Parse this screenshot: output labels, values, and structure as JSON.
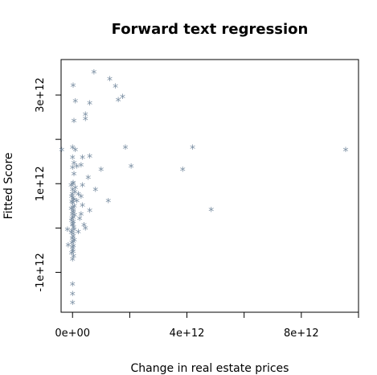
{
  "chart_data": {
    "type": "scatter",
    "title": "Forward text regression",
    "xlabel": "Change in real estate prices",
    "ylabel": "Fitted Score",
    "xlim": [
      -400000000000.0,
      10000000000000.0
    ],
    "ylim": [
      -1900000000000.0,
      3800000000000.0
    ],
    "x_ticks": [
      0,
      2000000000000.0,
      4000000000000.0,
      6000000000000.0,
      8000000000000.0,
      10000000000000.0
    ],
    "x_tick_labels": [
      {
        "value": 0,
        "label": "0e+00"
      },
      {
        "value": 4000000000000.0,
        "label": "4e+12"
      },
      {
        "value": 8000000000000.0,
        "label": "8e+12"
      }
    ],
    "y_ticks": [
      -1000000000000.0,
      0,
      1000000000000.0,
      2000000000000.0,
      3000000000000.0
    ],
    "y_tick_labels": [
      {
        "value": -1000000000000.0,
        "label": "-1e+12"
      },
      {
        "value": 1000000000000.0,
        "label": "1e+12"
      },
      {
        "value": 3000000000000.0,
        "label": "3e+12"
      }
    ],
    "marker": "*",
    "marker_color": "#7b8fa3",
    "grid": false,
    "points": [
      {
        "x": 750000000000.0,
        "y": 3500000000000.0
      },
      {
        "x": 1300000000000.0,
        "y": 3350000000000.0
      },
      {
        "x": 1500000000000.0,
        "y": 3180000000000.0
      },
      {
        "x": 20000000000.0,
        "y": 3200000000000.0
      },
      {
        "x": 1750000000000.0,
        "y": 2950000000000.0
      },
      {
        "x": 1600000000000.0,
        "y": 2870000000000.0
      },
      {
        "x": 100000000000.0,
        "y": 2850000000000.0
      },
      {
        "x": 600000000000.0,
        "y": 2800000000000.0
      },
      {
        "x": 450000000000.0,
        "y": 2550000000000.0
      },
      {
        "x": 450000000000.0,
        "y": 2450000000000.0
      },
      {
        "x": 50000000000.0,
        "y": 2400000000000.0
      },
      {
        "x": -380000000000.0,
        "y": 1750000000000.0
      },
      {
        "x": 0.0,
        "y": 1800000000000.0
      },
      {
        "x": 100000000000.0,
        "y": 1750000000000.0
      },
      {
        "x": 1850000000000.0,
        "y": 1800000000000.0
      },
      {
        "x": 4200000000000.0,
        "y": 1800000000000.0
      },
      {
        "x": 9550000000000.0,
        "y": 1750000000000.0
      },
      {
        "x": 600000000000.0,
        "y": 1600000000000.0
      },
      {
        "x": 350000000000.0,
        "y": 1580000000000.0
      },
      {
        "x": 0.0,
        "y": 1580000000000.0
      },
      {
        "x": 2050000000000.0,
        "y": 1380000000000.0
      },
      {
        "x": 3850000000000.0,
        "y": 1300000000000.0
      },
      {
        "x": 1000000000000.0,
        "y": 1300000000000.0
      },
      {
        "x": 300000000000.0,
        "y": 1400000000000.0
      },
      {
        "x": 50000000000.0,
        "y": 1450000000000.0
      },
      {
        "x": 150000000000.0,
        "y": 1380000000000.0
      },
      {
        "x": 0.0,
        "y": 1350000000000.0
      },
      {
        "x": 550000000000.0,
        "y": 1120000000000.0
      },
      {
        "x": 350000000000.0,
        "y": 950000000000.0
      },
      {
        "x": 800000000000.0,
        "y": 850000000000.0
      },
      {
        "x": 1250000000000.0,
        "y": 600000000000.0
      },
      {
        "x": 4850000000000.0,
        "y": 400000000000.0
      },
      {
        "x": 600000000000.0,
        "y": 380000000000.0
      },
      {
        "x": 300000000000.0,
        "y": 300000000000.0
      },
      {
        "x": 400000000000.0,
        "y": 50000000000.0
      },
      {
        "x": 450000000000.0,
        "y": -20000000000.0
      },
      {
        "x": -180000000000.0,
        "y": -50000000000.0
      },
      {
        "x": -150000000000.0,
        "y": -400000000000.0
      },
      {
        "x": 200000000000.0,
        "y": 750000000000.0
      },
      {
        "x": 150000000000.0,
        "y": 600000000000.0
      },
      {
        "x": 300000000000.0,
        "y": 700000000000.0
      },
      {
        "x": 250000000000.0,
        "y": 200000000000.0
      },
      {
        "x": 350000000000.0,
        "y": 500000000000.0
      },
      {
        "x": 200000000000.0,
        "y": -100000000000.0
      },
      {
        "x": 100000000000.0,
        "y": 900000000000.0
      },
      {
        "x": 50000000000.0,
        "y": 1200000000000.0
      },
      {
        "x": 20000000000.0,
        "y": 1000000000000.0
      },
      {
        "x": -50000000000.0,
        "y": 950000000000.0
      },
      {
        "x": 0.0,
        "y": 850000000000.0
      },
      {
        "x": 80000000000.0,
        "y": 800000000000.0
      },
      {
        "x": -30000000000.0,
        "y": 700000000000.0
      },
      {
        "x": 40000000000.0,
        "y": 620000000000.0
      },
      {
        "x": 0.0,
        "y": 550000000000.0
      },
      {
        "x": 60000000000.0,
        "y": 480000000000.0
      },
      {
        "x": -40000000000.0,
        "y": 420000000000.0
      },
      {
        "x": 20000000000.0,
        "y": 350000000000.0
      },
      {
        "x": 70000000000.0,
        "y": 280000000000.0
      },
      {
        "x": -20000000000.0,
        "y": 200000000000.0
      },
      {
        "x": 30000000000.0,
        "y": 120000000000.0
      },
      {
        "x": 0.0,
        "y": 50000000000.0
      },
      {
        "x": 50000000000.0,
        "y": -50000000000.0
      },
      {
        "x": -40000000000.0,
        "y": -120000000000.0
      },
      {
        "x": 20000000000.0,
        "y": -200000000000.0
      },
      {
        "x": 60000000000.0,
        "y": -280000000000.0
      },
      {
        "x": -20000000000.0,
        "y": -350000000000.0
      },
      {
        "x": 30000000000.0,
        "y": -420000000000.0
      },
      {
        "x": 0.0,
        "y": -500000000000.0
      },
      {
        "x": -30000000000.0,
        "y": -580000000000.0
      },
      {
        "x": 40000000000.0,
        "y": -650000000000.0
      },
      {
        "x": 0.0,
        "y": -720000000000.0
      },
      {
        "x": 10000000000.0,
        "y": 980000000000.0
      },
      {
        "x": -10000000000.0,
        "y": 750000000000.0
      },
      {
        "x": 20000000000.0,
        "y": 660000000000.0
      },
      {
        "x": -20000000000.0,
        "y": 580000000000.0
      },
      {
        "x": 10000000000.0,
        "y": 450000000000.0
      },
      {
        "x": 30000000000.0,
        "y": 380000000000.0
      },
      {
        "x": -10000000000.0,
        "y": 300000000000.0
      },
      {
        "x": 20000000000.0,
        "y": 220000000000.0
      },
      {
        "x": -30000000000.0,
        "y": 150000000000.0
      },
      {
        "x": 10000000000.0,
        "y": 80000000000.0
      },
      {
        "x": 40000000000.0,
        "y": 0.0
      },
      {
        "x": -20000000000.0,
        "y": -80000000000.0
      },
      {
        "x": 20000000000.0,
        "y": -150000000000.0
      },
      {
        "x": -10000000000.0,
        "y": -250000000000.0
      },
      {
        "x": 30000000000.0,
        "y": -320000000000.0
      },
      {
        "x": 0.0,
        "y": -450000000000.0
      },
      {
        "x": 20000000000.0,
        "y": -550000000000.0
      },
      {
        "x": 0.0,
        "y": -1280000000000.0
      },
      {
        "x": 0.0,
        "y": -1500000000000.0
      },
      {
        "x": 0.0,
        "y": -1700000000000.0
      }
    ]
  }
}
